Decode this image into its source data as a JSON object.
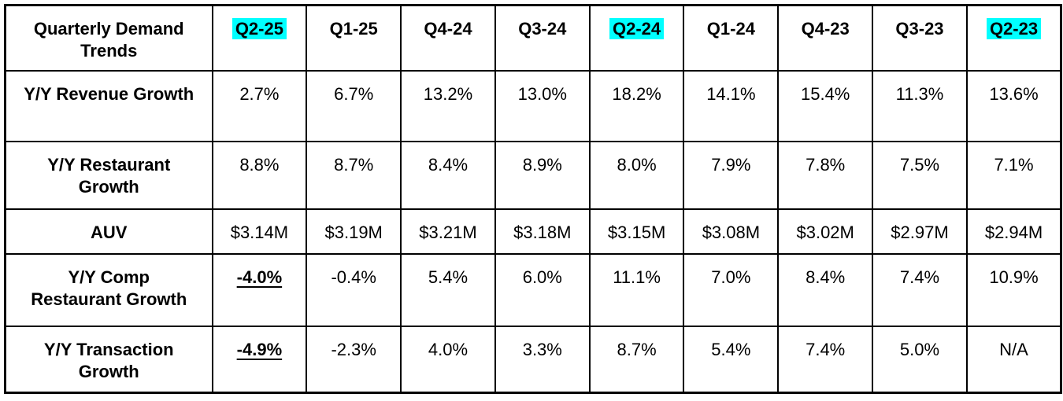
{
  "table": {
    "title": "Quarterly Demand Trends",
    "highlight_color": "#00FFFF",
    "columns": [
      "Q2-25",
      "Q1-25",
      "Q4-24",
      "Q3-24",
      "Q2-24",
      "Q1-24",
      "Q4-23",
      "Q3-23",
      "Q2-23"
    ],
    "highlighted_column_indexes": [
      0,
      4,
      8
    ],
    "rows": [
      {
        "label": "Y/Y Revenue Growth",
        "values": [
          "2.7%",
          "6.7%",
          "13.2%",
          "13.0%",
          "18.2%",
          "14.1%",
          "15.4%",
          "11.3%",
          "13.6%"
        ]
      },
      {
        "label": "Y/Y Restaurant Growth",
        "values": [
          "8.8%",
          "8.7%",
          "8.4%",
          "8.9%",
          "8.0%",
          "7.9%",
          "7.8%",
          "7.5%",
          "7.1%"
        ]
      },
      {
        "label": "AUV",
        "values": [
          "$3.14M",
          "$3.19M",
          "$3.21M",
          "$3.18M",
          "$3.15M",
          "$3.08M",
          "$3.02M",
          "$2.97M",
          "$2.94M"
        ]
      },
      {
        "label": "Y/Y Comp Restaurant Growth",
        "values": [
          "-4.0%",
          "-0.4%",
          "5.4%",
          "6.0%",
          "11.1%",
          "7.0%",
          "8.4%",
          "7.4%",
          "10.9%"
        ],
        "emphasized_value_indexes": [
          0
        ]
      },
      {
        "label": "Y/Y Transaction Growth",
        "values": [
          "-4.9%",
          "-2.3%",
          "4.0%",
          "3.3%",
          "8.7%",
          "5.4%",
          "7.4%",
          "5.0%",
          "N/A"
        ],
        "emphasized_value_indexes": [
          0
        ]
      }
    ]
  },
  "chart_data": {
    "type": "table",
    "title": "Quarterly Demand Trends",
    "categories": [
      "Q2-25",
      "Q1-25",
      "Q4-24",
      "Q3-24",
      "Q2-24",
      "Q1-24",
      "Q4-23",
      "Q3-23",
      "Q2-23"
    ],
    "series": [
      {
        "name": "Y/Y Revenue Growth (%)",
        "values": [
          2.7,
          6.7,
          13.2,
          13.0,
          18.2,
          14.1,
          15.4,
          11.3,
          13.6
        ]
      },
      {
        "name": "Y/Y Restaurant Growth (%)",
        "values": [
          8.8,
          8.7,
          8.4,
          8.9,
          8.0,
          7.9,
          7.8,
          7.5,
          7.1
        ]
      },
      {
        "name": "AUV ($M)",
        "values": [
          3.14,
          3.19,
          3.21,
          3.18,
          3.15,
          3.08,
          3.02,
          2.97,
          2.94
        ]
      },
      {
        "name": "Y/Y Comp Restaurant Growth (%)",
        "values": [
          -4.0,
          -0.4,
          5.4,
          6.0,
          11.1,
          7.0,
          8.4,
          7.4,
          10.9
        ]
      },
      {
        "name": "Y/Y Transaction Growth (%)",
        "values": [
          -4.9,
          -2.3,
          4.0,
          3.3,
          8.7,
          5.4,
          7.4,
          5.0,
          null
        ]
      }
    ],
    "highlighted_categories": [
      "Q2-25",
      "Q2-24",
      "Q2-23"
    ],
    "emphasized_cells": [
      {
        "row": "Y/Y Comp Restaurant Growth",
        "column": "Q2-25",
        "value": "-4.0%"
      },
      {
        "row": "Y/Y Transaction Growth",
        "column": "Q2-25",
        "value": "-4.9%"
      }
    ]
  }
}
